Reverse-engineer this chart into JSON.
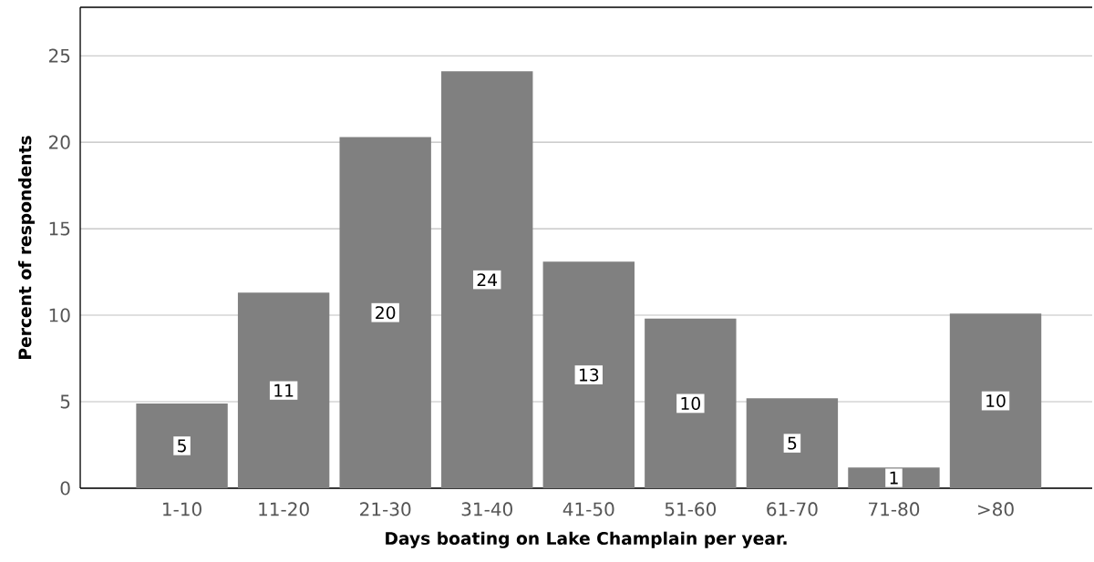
{
  "chart_data": {
    "type": "bar",
    "xlabel": "Days boating on Lake Champlain per year.",
    "ylabel": "Percent of respondents",
    "categories": [
      "1-10",
      "11-20",
      "21-30",
      "31-40",
      "41-50",
      "51-60",
      "61-70",
      "71-80",
      ">80"
    ],
    "values": [
      4.9,
      11.3,
      20.3,
      24.1,
      13.1,
      9.8,
      5.2,
      1.2,
      10.1
    ],
    "value_labels": [
      "5",
      "11",
      "20",
      "24",
      "13",
      "10",
      "5",
      "1",
      "10"
    ],
    "color": "#808080",
    "ylim": [
      0,
      27.8
    ],
    "yticks": [
      0,
      5,
      10,
      15,
      20,
      25
    ],
    "grid": "y"
  }
}
